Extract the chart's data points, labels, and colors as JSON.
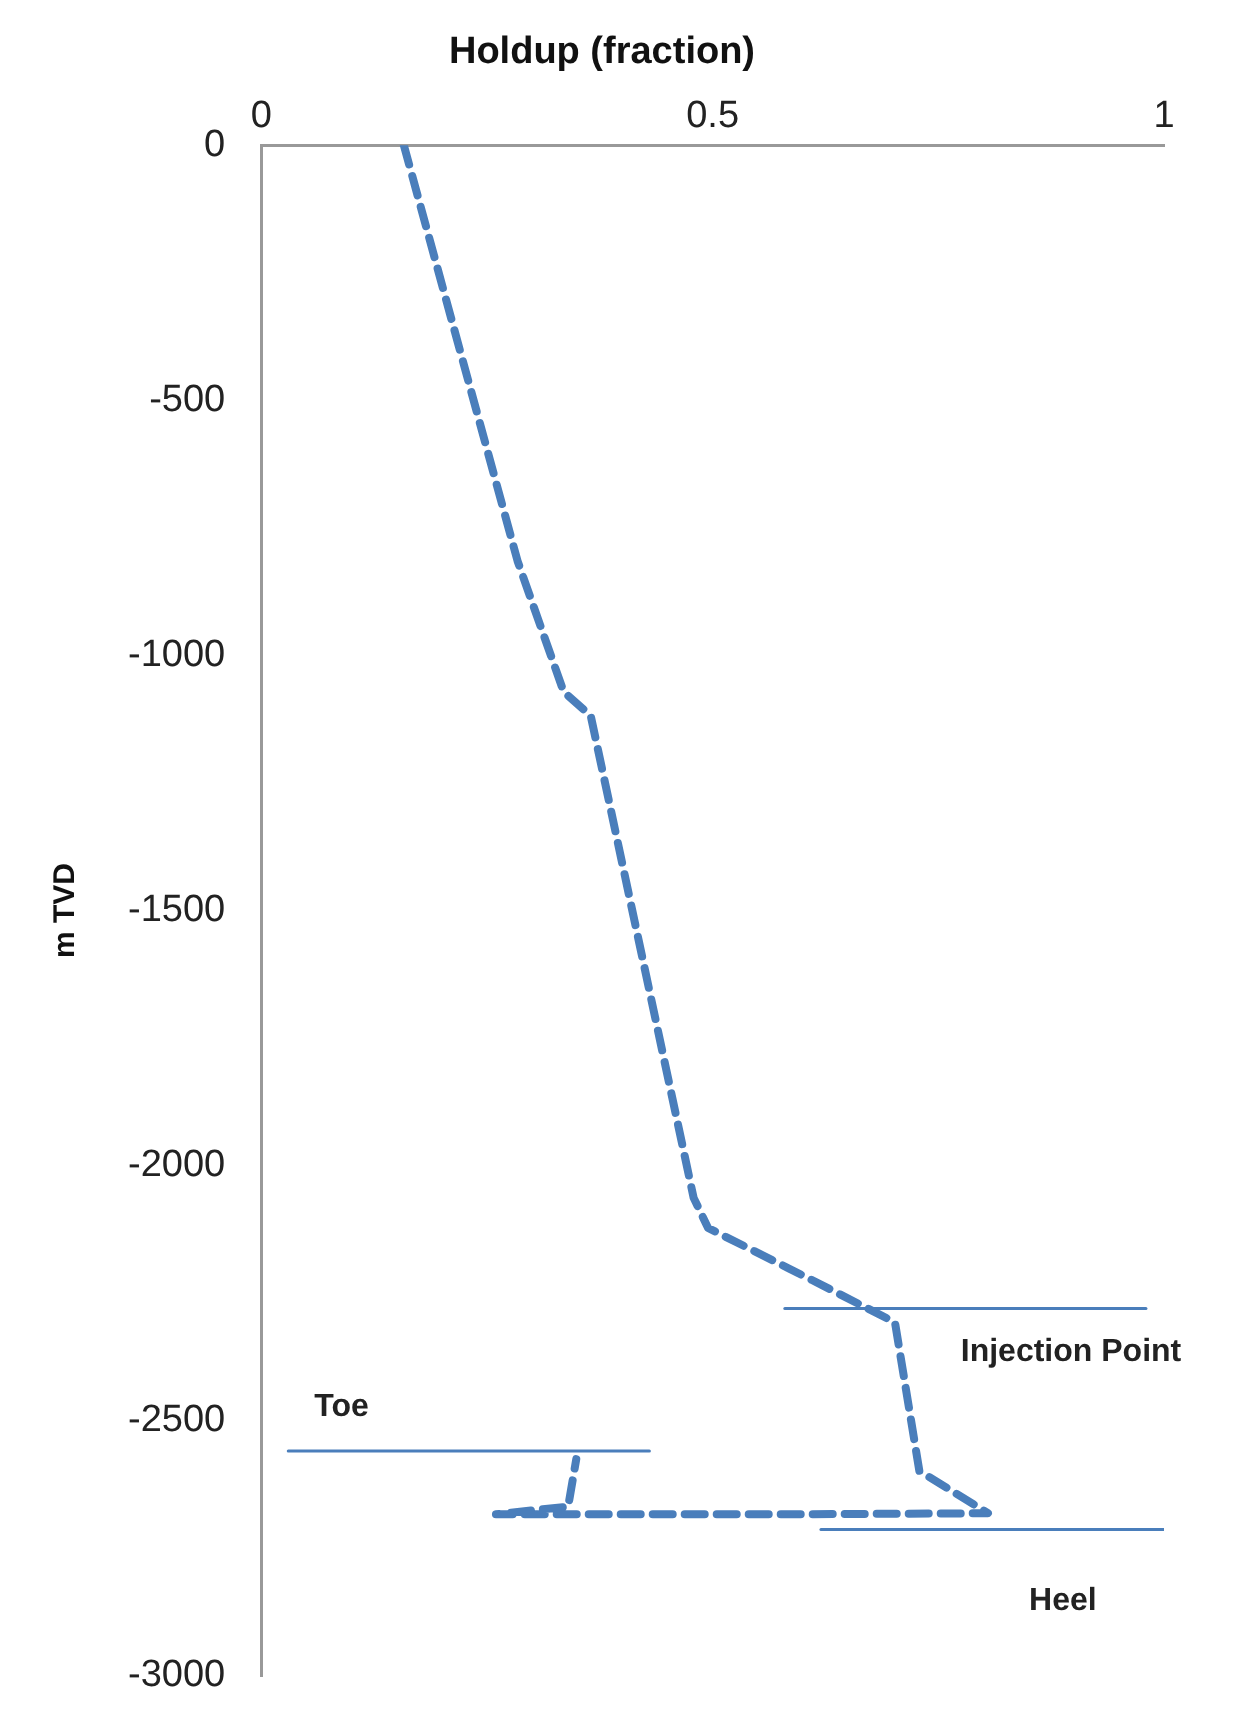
{
  "chart_data": {
    "type": "line",
    "title": "Holdup (fraction)",
    "ylabel": "m TVD",
    "xlim": [
      0,
      1
    ],
    "xticks": [
      0,
      0.5,
      1
    ],
    "ylim": [
      -3000,
      0
    ],
    "yticks": [
      0,
      -500,
      -1000,
      -1500,
      -2000,
      -2500,
      -3000
    ],
    "grid": false,
    "legend": false,
    "marker": "none",
    "series": [
      {
        "type": "line",
        "line_style": "dashed",
        "color": "#4a7ebb",
        "x": [
          0.158,
          0.284,
          0.335,
          0.365,
          0.479,
          0.495,
          0.61,
          0.702,
          0.729,
          0.805,
          0.6,
          0.4,
          0.26,
          0.34,
          0.349
        ],
        "values": [
          0,
          -815,
          -1071,
          -1118,
          -2063,
          -2122,
          -2224,
          -2307,
          -2598,
          -2681,
          -2683,
          -2683,
          -2683,
          -2668,
          -2575
        ]
      },
      {
        "type": "line",
        "line_style": "solid",
        "color": "#4a7ebb",
        "x": [
          0.58,
          0.98
        ],
        "values": [
          -2280,
          -2280
        ]
      },
      {
        "type": "line",
        "line_style": "solid",
        "color": "#4a7ebb",
        "x": [
          0.03,
          0.43
        ],
        "values": [
          -2559,
          -2559
        ]
      },
      {
        "type": "line",
        "line_style": "solid",
        "color": "#4a7ebb",
        "x": [
          0.62,
          1
        ],
        "values": [
          -2713,
          -2713
        ]
      }
    ],
    "annotations": [
      {
        "text": "Injection Point",
        "x": 0.897,
        "y": -2280
      },
      {
        "text": "Toe",
        "x": 0.089,
        "y": -2559
      },
      {
        "text": "Heel",
        "x": 0.888,
        "y": -2713
      }
    ]
  }
}
